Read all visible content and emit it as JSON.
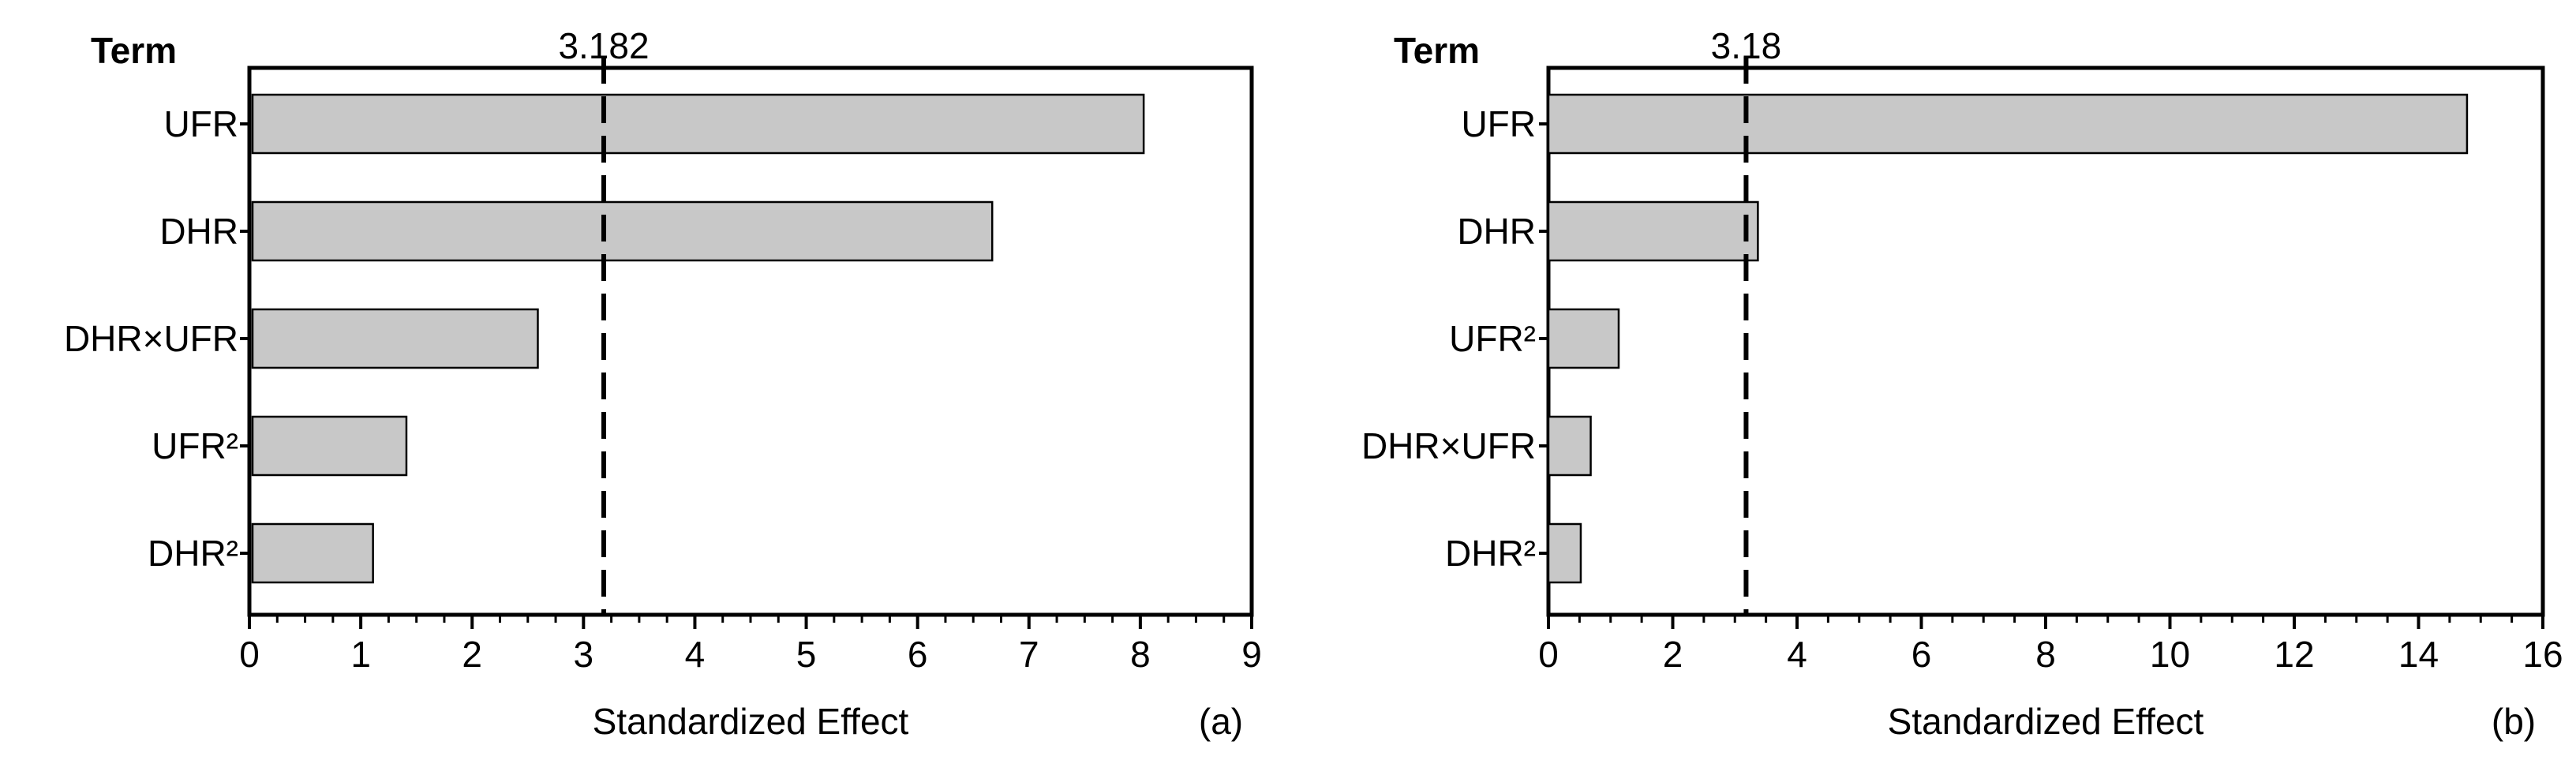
{
  "chart_data": [
    {
      "panel": "(a)",
      "type": "bar",
      "orientation": "horizontal",
      "term_header": "Term",
      "categories": [
        "UFR",
        "DHR",
        "DHR×UFR",
        "UFR²",
        "DHR²"
      ],
      "values": [
        8.03,
        6.67,
        2.59,
        1.41,
        1.11
      ],
      "reference_line": {
        "value": 3.182,
        "label": "3.182",
        "style": "dashed"
      },
      "xlabel": "Standardized Effect",
      "ylabel": "",
      "title": "",
      "xlim": [
        0,
        9
      ],
      "xticks": [
        0,
        1,
        2,
        3,
        4,
        5,
        6,
        7,
        8,
        9
      ],
      "bar_color": "#c8c8c8",
      "grid": false
    },
    {
      "panel": "(b)",
      "type": "bar",
      "orientation": "horizontal",
      "term_header": "Term",
      "categories": [
        "UFR",
        "DHR",
        "UFR²",
        "DHR×UFR",
        "DHR²"
      ],
      "values": [
        14.78,
        3.37,
        1.13,
        0.68,
        0.52
      ],
      "reference_line": {
        "value": 3.18,
        "label": "3.18",
        "style": "dashed"
      },
      "xlabel": "Standardized Effect",
      "ylabel": "",
      "title": "",
      "xlim": [
        0,
        16
      ],
      "xticks": [
        0,
        2,
        4,
        6,
        8,
        10,
        12,
        14,
        16
      ],
      "bar_color": "#c8c8c8",
      "grid": false
    }
  ]
}
